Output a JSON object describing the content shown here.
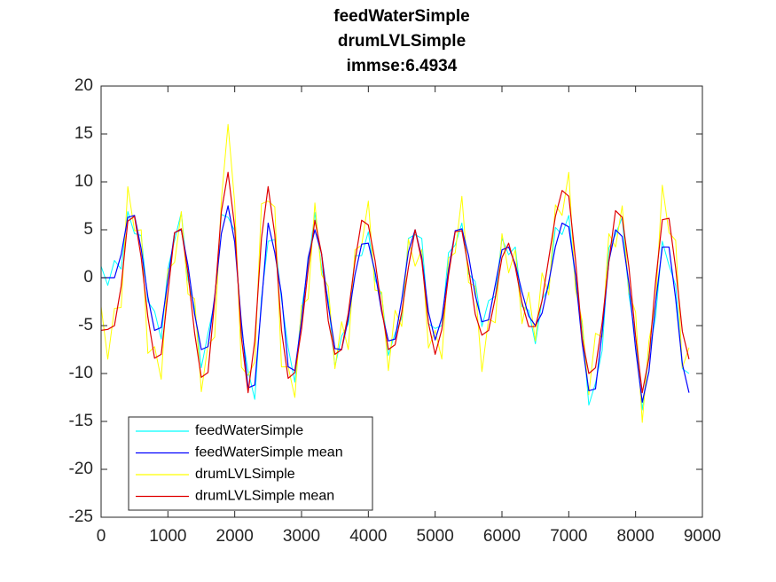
{
  "chart_data": {
    "type": "line",
    "title": [
      "feedWaterSimple",
      "drumLVLSimple",
      "immse:6.4934"
    ],
    "x": [
      0,
      100,
      200,
      300,
      400,
      500,
      600,
      700,
      800,
      900,
      1000,
      1100,
      1200,
      1300,
      1400,
      1500,
      1600,
      1700,
      1800,
      1900,
      2000,
      2100,
      2200,
      2300,
      2400,
      2500,
      2600,
      2700,
      2800,
      2900,
      3000,
      3100,
      3200,
      3300,
      3400,
      3500,
      3600,
      3700,
      3800,
      3900,
      4000,
      4100,
      4200,
      4300,
      4400,
      4500,
      4600,
      4700,
      4800,
      4900,
      5000,
      5100,
      5200,
      5300,
      5400,
      5500,
      5600,
      5700,
      5800,
      5900,
      6000,
      6100,
      6200,
      6300,
      6400,
      6500,
      6600,
      6700,
      6800,
      6900,
      7000,
      7100,
      7200,
      7300,
      7400,
      7500,
      7600,
      7700,
      7800,
      7900,
      8000,
      8100,
      8200,
      8300,
      8400,
      8500,
      8600,
      8700,
      8800
    ],
    "series": [
      {
        "name": "feedWaterSimple",
        "color": "#00ffff",
        "values": [
          1.2,
          -0.8,
          1.8,
          0.9,
          6.9,
          4.6,
          4.4,
          -2.5,
          -3.5,
          -6.4,
          0.95,
          3.9,
          6.8,
          -0.2,
          -3.2,
          -9.4,
          -5.8,
          -2.5,
          6.6,
          6.3,
          4.9,
          -5.5,
          -9.7,
          -12.7,
          -2.15,
          3.8,
          4.0,
          -2.25,
          -7.3,
          -10.9,
          -3.3,
          1.3,
          6.8,
          1.0,
          -2.3,
          -9.3,
          -6.1,
          -4.8,
          2.3,
          2.3,
          4.8,
          -0.2,
          -1.8,
          -8.1,
          -5.8,
          -4.2,
          4.1,
          4.5,
          4.1,
          -4.8,
          -5.3,
          -5.0,
          2.6,
          3.4,
          5.7,
          0.4,
          -0.4,
          -5.1,
          -2.4,
          -1.95,
          4.1,
          2.4,
          3.2,
          -3.0,
          -3.4,
          -6.9,
          -2.3,
          -1.0,
          5.25,
          4.5,
          6.5,
          -0.5,
          -5.0,
          -13.3,
          -11.0,
          -7.6,
          3.1,
          4.5,
          6.3,
          -1.8,
          -6.2,
          -13.8,
          -8.0,
          -4.1,
          3.8,
          1.3,
          -0.8,
          -9.5,
          -10.0
        ]
      },
      {
        "name": "feedWaterSimple mean",
        "color": "#0000ff",
        "values": [
          0,
          0,
          0,
          2.4,
          6.3,
          6.5,
          3.0,
          -2.0,
          -5.5,
          -5.2,
          -0.25,
          4.7,
          5.0,
          1.3,
          -3.8,
          -7.5,
          -7.2,
          -2.0,
          4.6,
          7.5,
          3.7,
          -4.7,
          -11.5,
          -11.2,
          -2.75,
          5.7,
          2.6,
          -1.75,
          -9.3,
          -9.7,
          -4.5,
          2.1,
          5,
          2.5,
          -2.9,
          -7.4,
          -7.5,
          -4.3,
          0.3,
          3.5,
          3.6,
          0.6,
          -3.6,
          -6.6,
          -6.4,
          -2.3,
          2.7,
          5,
          2.1,
          -3.6,
          -6.5,
          -4.2,
          0.8,
          4.9,
          5.1,
          2.3,
          -1.8,
          -4.6,
          -4.4,
          -0.75,
          2.9,
          3.2,
          1.4,
          -1.5,
          -4.0,
          -5,
          -3.7,
          -0.5,
          3.25,
          5.7,
          5.3,
          0.3,
          -6.8,
          -11.8,
          -11.6,
          -5.7,
          1.7,
          5,
          4.3,
          -0.6,
          -7.4,
          -13,
          -9.8,
          -2.6,
          3.2,
          3.2,
          -2.2,
          -9.0,
          -12
        ]
      },
      {
        "name": "drumLVLSimple",
        "color": "#ffff00",
        "values": [
          -3.0,
          -8.5,
          -3.2,
          -3.1,
          9.5,
          4.9,
          5.0,
          -7.9,
          -7.2,
          -10.6,
          0.85,
          1.6,
          6.9,
          -1.7,
          -2.2,
          -11.9,
          -7.0,
          -6.2,
          8.1,
          16,
          7.75,
          -9.35,
          -10.2,
          -8.8,
          7.7,
          8.0,
          7.4,
          -9.3,
          -9.3,
          -12.5,
          -2.9,
          -2.2,
          7.8,
          0.3,
          -0.9,
          -9.5,
          -4.6,
          -7.5,
          2.9,
          3.4,
          8.0,
          -1.3,
          -1.5,
          -9.7,
          -3.4,
          -5.1,
          4.0,
          1.2,
          2.95,
          -7.35,
          -5.5,
          -8.5,
          2.05,
          2.6,
          8.5,
          -0.5,
          -0.9,
          -9.8,
          -4.3,
          -4.7,
          4.6,
          0.5,
          2.9,
          -4.8,
          -1.5,
          -6.6,
          0.5,
          -1.8,
          7.6,
          6.5,
          11.0,
          -1.2,
          -4.5,
          -12.2,
          -5.8,
          -6.2,
          4.6,
          3.2,
          7.5,
          -1.5,
          -3.6,
          -15.1,
          -6.6,
          -2.6,
          9.65,
          4.7,
          3.9,
          -9.4,
          -7.3
        ]
      },
      {
        "name": "drumLVLSimple mean",
        "color": "#e00000",
        "values": [
          -5.5,
          -5.4,
          -5,
          -0.9,
          5.9,
          6.4,
          2.1,
          -4.1,
          -8.4,
          -8.0,
          -1.65,
          4.7,
          5.1,
          0.5,
          -5.8,
          -10.4,
          -9.9,
          -2.4,
          6.9,
          11,
          5.25,
          -6.25,
          -12,
          -6.6,
          4.1,
          9.5,
          4.5,
          -5.5,
          -10.5,
          -9.9,
          -5.4,
          0.9,
          6,
          2.5,
          -4.5,
          -8,
          -7.5,
          -3.7,
          1.7,
          6,
          5.5,
          1.8,
          -3.3,
          -7.5,
          -7.0,
          -3.6,
          1.1,
          5,
          1.75,
          -4.75,
          -8,
          -5.4,
          0.25,
          4.8,
          4.9,
          1.0,
          -3.8,
          -6,
          -5.5,
          -2.1,
          2.1,
          3.6,
          1.1,
          -2.6,
          -5.1,
          -5.1,
          -2.4,
          2.0,
          6.4,
          9.1,
          8.5,
          1.9,
          -6.3,
          -10,
          -9.4,
          -4.7,
          1.7,
          7,
          6.3,
          1.1,
          -6.1,
          -12,
          -8.4,
          -0.4,
          6.05,
          6.2,
          1.0,
          -5.6,
          -8.5
        ]
      }
    ],
    "xlim": [
      0,
      9000
    ],
    "xticks": [
      0,
      1000,
      2000,
      3000,
      4000,
      5000,
      6000,
      7000,
      8000,
      9000
    ],
    "ylim": [
      -25,
      20
    ],
    "yticks": [
      -25,
      -20,
      -15,
      -10,
      -5,
      0,
      5,
      10,
      15,
      20
    ],
    "legend": "lower left"
  }
}
